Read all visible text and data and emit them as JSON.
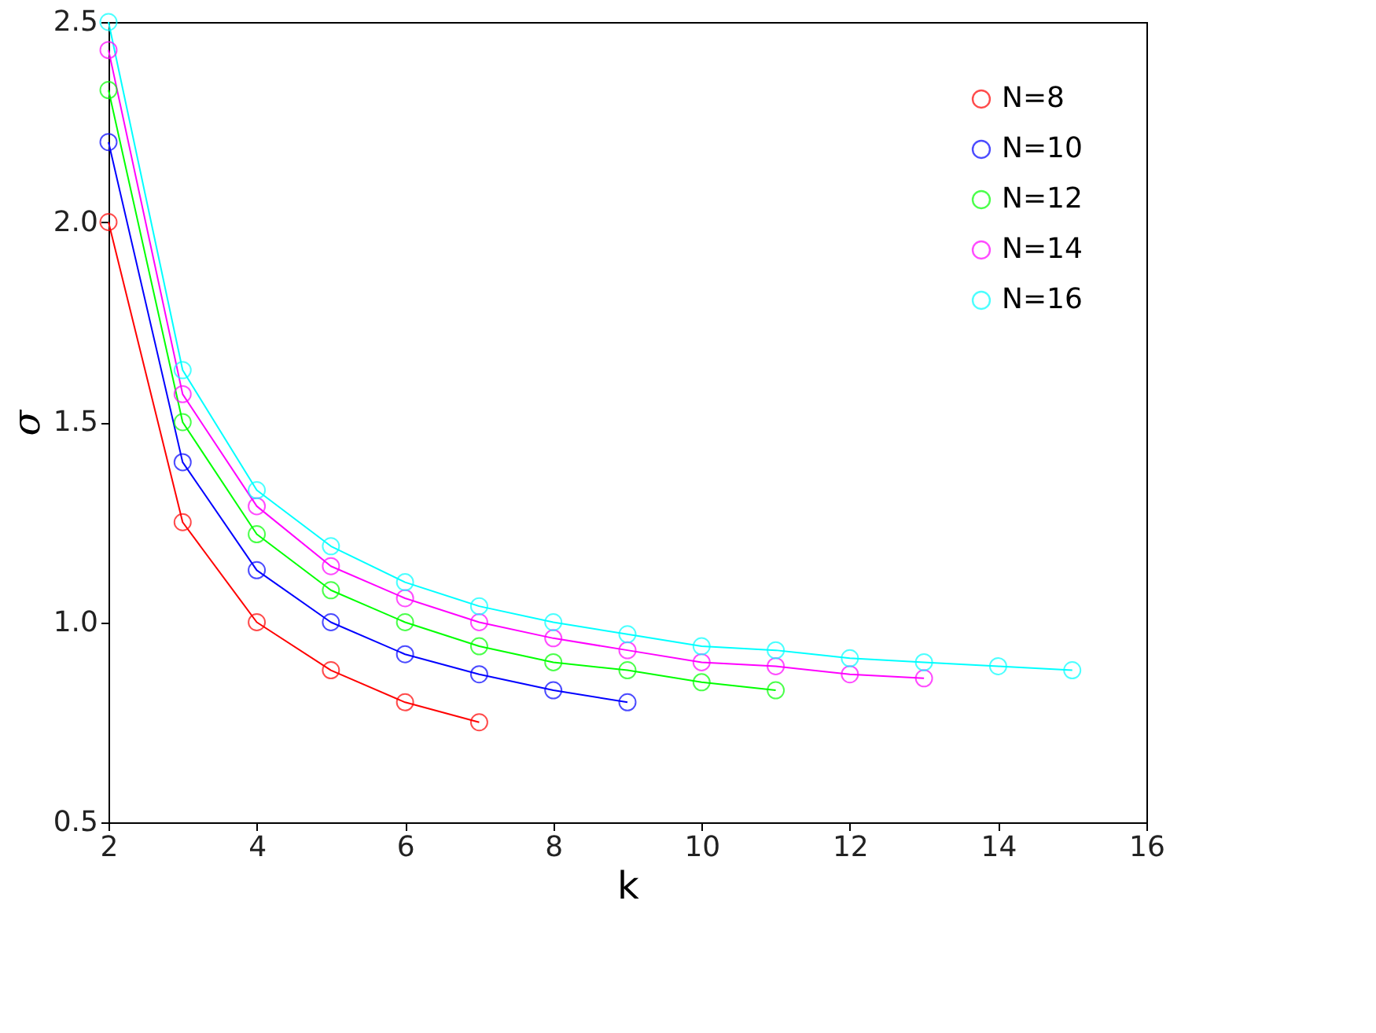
{
  "chart_data": {
    "type": "line",
    "xlabel": "k",
    "ylabel": "σ",
    "xlim": [
      2,
      16
    ],
    "xticks": [
      2,
      4,
      6,
      8,
      10,
      12,
      14,
      16
    ],
    "ylim": [
      0.5,
      2.5
    ],
    "yticks": [
      0.5,
      {
        "value": 1,
        "label": "1.0"
      },
      1.5,
      {
        "value": 2,
        "label": "2.0"
      },
      2.5
    ],
    "grid": false,
    "legend": "top right",
    "marker": "circle",
    "line_style": "solid",
    "series": [
      {
        "name": "N=8",
        "color": "#ff0000",
        "x": [
          2,
          3,
          4,
          5,
          6,
          7
        ],
        "values": [
          2.0,
          1.25,
          1.0,
          0.88,
          0.8,
          0.75
        ]
      },
      {
        "name": "N=10",
        "color": "#0000ff",
        "x": [
          2,
          3,
          4,
          5,
          6,
          7,
          8,
          9
        ],
        "values": [
          2.2,
          1.4,
          1.13,
          1.0,
          0.92,
          0.87,
          0.83,
          0.8
        ]
      },
      {
        "name": "N=12",
        "color": "#00ff00",
        "x": [
          2,
          3,
          4,
          5,
          6,
          7,
          8,
          9,
          10,
          11
        ],
        "values": [
          2.33,
          1.5,
          1.22,
          1.08,
          1.0,
          0.94,
          0.9,
          0.88,
          0.85,
          0.83
        ]
      },
      {
        "name": "N=14",
        "color": "#ff00ff",
        "x": [
          2,
          3,
          4,
          5,
          6,
          7,
          8,
          9,
          10,
          11,
          12,
          13
        ],
        "values": [
          2.43,
          1.57,
          1.29,
          1.14,
          1.06,
          1.0,
          0.96,
          0.93,
          0.9,
          0.89,
          0.87,
          0.86
        ]
      },
      {
        "name": "N=16",
        "color": "#00ffff",
        "x": [
          2,
          3,
          4,
          5,
          6,
          7,
          8,
          9,
          10,
          11,
          12,
          13,
          14,
          15
        ],
        "values": [
          2.5,
          1.63,
          1.33,
          1.19,
          1.1,
          1.04,
          1.0,
          0.97,
          0.94,
          0.93,
          0.91,
          0.9,
          0.89,
          0.88
        ]
      }
    ]
  }
}
